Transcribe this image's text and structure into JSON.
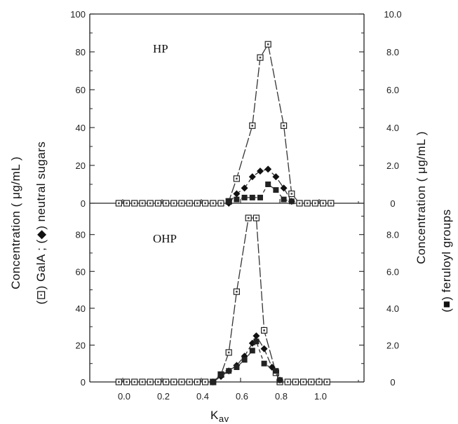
{
  "figure": {
    "xlabel_main": "K",
    "xlabel_sub": "av",
    "ylabel_left": "Concentration ( μg/mL )",
    "ylabel_left_sub": "(⊡) GalA ; (◆) neutral sugars",
    "ylabel_right": "Concentration ( μg/mL )",
    "ylabel_right_sub": "(■) feruloyl groups"
  },
  "chart_data": [
    {
      "type": "line",
      "panel_label": "HP",
      "x_ticks": [
        "0.0",
        "0.2",
        "0.4",
        "0.6",
        "0.8",
        "1.0"
      ],
      "y_left_ticks": [
        "0",
        "20",
        "40",
        "60",
        "80",
        "100"
      ],
      "y_right_ticks": [
        "0",
        "2.0",
        "4.0",
        "6.0",
        "8.0",
        "10.0"
      ],
      "ylim_left": [
        0,
        100
      ],
      "ylim_right": [
        0,
        10
      ],
      "xlim": [
        -0.15,
        1.22
      ],
      "series": [
        {
          "name": "GalA",
          "axis": "left",
          "marker": "open-square",
          "points": [
            [
              -0.02,
              0
            ],
            [
              0.02,
              0
            ],
            [
              0.06,
              0
            ],
            [
              0.1,
              0
            ],
            [
              0.14,
              0
            ],
            [
              0.18,
              0
            ],
            [
              0.22,
              0
            ],
            [
              0.26,
              0
            ],
            [
              0.3,
              0
            ],
            [
              0.34,
              0
            ],
            [
              0.38,
              0
            ],
            [
              0.42,
              0
            ],
            [
              0.46,
              0
            ],
            [
              0.5,
              0
            ],
            [
              0.54,
              1
            ],
            [
              0.58,
              13
            ],
            [
              0.66,
              41
            ],
            [
              0.7,
              77
            ],
            [
              0.74,
              84
            ],
            [
              0.82,
              41
            ],
            [
              0.86,
              5
            ],
            [
              0.9,
              0
            ],
            [
              0.94,
              0
            ],
            [
              0.98,
              0
            ],
            [
              1.02,
              0
            ],
            [
              1.06,
              0
            ]
          ]
        },
        {
          "name": "neutral sugars",
          "axis": "left",
          "marker": "filled-diamond",
          "points": [
            [
              0.54,
              0
            ],
            [
              0.58,
              5
            ],
            [
              0.62,
              8
            ],
            [
              0.66,
              14
            ],
            [
              0.7,
              17
            ],
            [
              0.74,
              18
            ],
            [
              0.78,
              14
            ],
            [
              0.82,
              8
            ],
            [
              0.86,
              1
            ]
          ]
        },
        {
          "name": "feruloyl groups",
          "axis": "right",
          "marker": "filled-square",
          "points": [
            [
              0.54,
              0.1
            ],
            [
              0.58,
              0.2
            ],
            [
              0.62,
              0.3
            ],
            [
              0.66,
              0.3
            ],
            [
              0.7,
              0.3
            ],
            [
              0.74,
              1.0
            ],
            [
              0.78,
              0.7
            ],
            [
              0.82,
              0.2
            ],
            [
              0.86,
              0.1
            ]
          ]
        }
      ]
    },
    {
      "type": "line",
      "panel_label": "OHP",
      "x_ticks": [
        "0.0",
        "0.2",
        "0.4",
        "0.6",
        "0.8",
        "1.0"
      ],
      "y_left_ticks": [
        "0",
        "20",
        "40",
        "60",
        "80"
      ],
      "y_right_ticks": [
        "0",
        "2.0",
        "4.0",
        "6.0",
        "8.0"
      ],
      "ylim_left": [
        0,
        97
      ],
      "ylim_right": [
        0,
        9.7
      ],
      "xlim": [
        -0.15,
        1.22
      ],
      "series": [
        {
          "name": "GalA",
          "axis": "left",
          "marker": "open-square",
          "points": [
            [
              -0.02,
              0
            ],
            [
              0.02,
              0
            ],
            [
              0.06,
              0
            ],
            [
              0.1,
              0
            ],
            [
              0.14,
              0
            ],
            [
              0.18,
              0
            ],
            [
              0.22,
              0
            ],
            [
              0.26,
              0
            ],
            [
              0.3,
              0
            ],
            [
              0.34,
              0
            ],
            [
              0.38,
              0
            ],
            [
              0.42,
              0
            ],
            [
              0.46,
              0
            ],
            [
              0.5,
              4
            ],
            [
              0.54,
              16
            ],
            [
              0.58,
              49
            ],
            [
              0.64,
              89
            ],
            [
              0.68,
              89
            ],
            [
              0.72,
              28
            ],
            [
              0.78,
              5
            ],
            [
              0.8,
              0
            ],
            [
              0.84,
              0
            ],
            [
              0.88,
              0
            ],
            [
              0.92,
              0
            ],
            [
              0.96,
              0
            ],
            [
              1.0,
              0
            ],
            [
              1.04,
              0
            ]
          ]
        },
        {
          "name": "neutral sugars",
          "axis": "left",
          "marker": "filled-diamond",
          "points": [
            [
              0.46,
              0
            ],
            [
              0.5,
              3
            ],
            [
              0.54,
              6
            ],
            [
              0.58,
              9
            ],
            [
              0.62,
              14
            ],
            [
              0.66,
              21
            ],
            [
              0.68,
              25
            ],
            [
              0.72,
              18
            ],
            [
              0.76,
              8
            ],
            [
              0.8,
              1
            ]
          ]
        },
        {
          "name": "feruloyl groups",
          "axis": "right",
          "marker": "filled-square",
          "points": [
            [
              0.46,
              0
            ],
            [
              0.5,
              0.4
            ],
            [
              0.54,
              0.6
            ],
            [
              0.58,
              0.8
            ],
            [
              0.62,
              1.2
            ],
            [
              0.66,
              1.7
            ],
            [
              0.68,
              2.2
            ],
            [
              0.72,
              1.0
            ],
            [
              0.78,
              0.6
            ],
            [
              0.8,
              0.1
            ]
          ]
        }
      ]
    }
  ]
}
